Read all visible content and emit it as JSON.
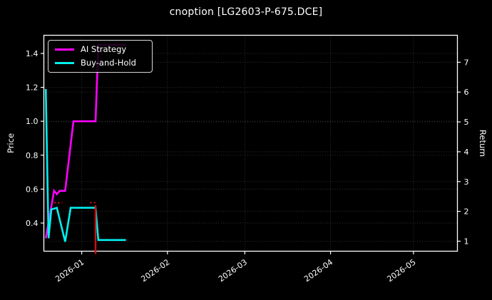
{
  "chart_data": {
    "type": "line",
    "title": "cnoption [LG2603-P-675.DCE]",
    "grid": true,
    "legend_position": "upper left",
    "x_axis": {
      "epoch": "2026-01-01",
      "range_days": [
        -13.7,
        135.9
      ],
      "ticks": [
        {
          "label": "2026-01",
          "date": "2026-01-01"
        },
        {
          "label": "2026-02",
          "date": "2026-02-01"
        },
        {
          "label": "2026-03",
          "date": "2026-03-01"
        },
        {
          "label": "2026-04",
          "date": "2026-04-01"
        },
        {
          "label": "2026-05",
          "date": "2026-05-01"
        }
      ]
    },
    "left_axis": {
      "label": "Price",
      "ticks": [
        "0.4",
        "0.6",
        "0.8",
        "1.0",
        "1.2",
        "1.4"
      ],
      "range": [
        0.234,
        1.507
      ]
    },
    "right_axis": {
      "label": "Return",
      "ticks": [
        "1",
        "2",
        "3",
        "4",
        "5",
        "6",
        "7"
      ],
      "range": [
        0.665,
        7.905
      ]
    },
    "series": [
      {
        "name": "AI Strategy",
        "color": "#ff00ff",
        "width": 2.6,
        "points": [
          [
            "2025-12-19",
            0.31
          ],
          [
            "2025-12-22",
            0.59
          ],
          [
            "2025-12-23",
            0.57
          ],
          [
            "2025-12-24",
            0.59
          ],
          [
            "2025-12-26",
            0.59
          ],
          [
            "2025-12-29",
            1.0
          ],
          [
            "2026-01-06",
            1.0
          ],
          [
            "2026-01-07",
            1.45
          ],
          [
            "2026-01-17",
            1.45
          ]
        ]
      },
      {
        "name": "Buy-and-Hold",
        "color": "#00efef",
        "width": 2.6,
        "points": [
          [
            "2025-12-19",
            1.19
          ],
          [
            "2025-12-20",
            0.31
          ],
          [
            "2025-12-21",
            0.48
          ],
          [
            "2025-12-23",
            0.49
          ],
          [
            "2025-12-26",
            0.29
          ],
          [
            "2025-12-28",
            0.49
          ],
          [
            "2026-01-06",
            0.49
          ],
          [
            "2026-01-07",
            0.3
          ],
          [
            "2026-01-17",
            0.3
          ]
        ]
      }
    ],
    "annotations": {
      "vline": {
        "date": "2026-01-06",
        "color": "#cc1111",
        "price_top": 0.505,
        "width": 2.4
      },
      "dashed_segments": [
        {
          "price": 0.52,
          "from": "2025-12-22",
          "to": "2025-12-25",
          "color": "#cc1111"
        },
        {
          "price": 0.52,
          "from": "2026-01-04",
          "to": "2026-01-06",
          "color": "#cc1111"
        }
      ]
    },
    "colors": {
      "background": "#000000",
      "text": "#ffffff",
      "grid": "#3a3a3a",
      "spine": "#ffffff"
    }
  },
  "legend": {
    "items": [
      {
        "label": "AI Strategy"
      },
      {
        "label": "Buy-and-Hold"
      }
    ]
  }
}
